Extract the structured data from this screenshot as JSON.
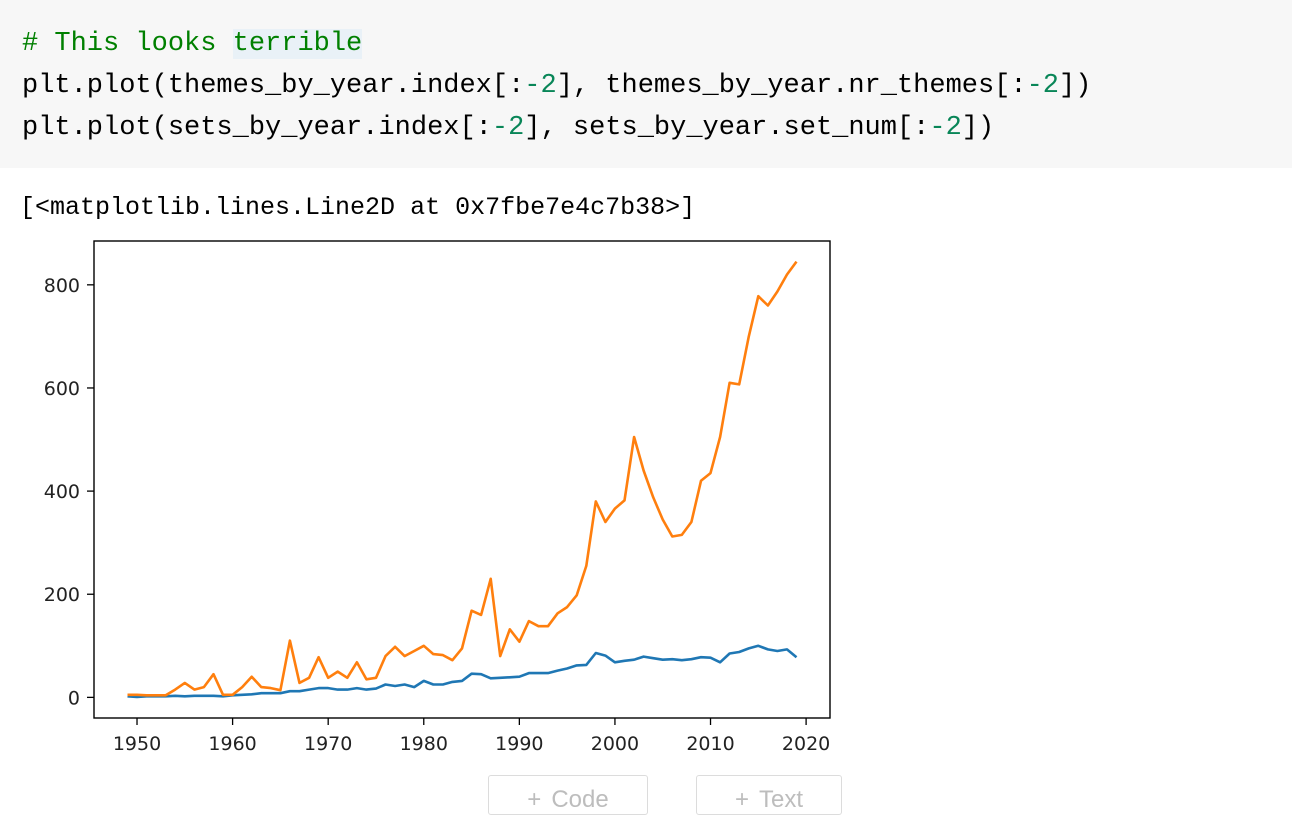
{
  "code": {
    "comment": "# This looks terrible",
    "line2": {
      "pre": "plt.plot(themes_by_year.index[:",
      "n1": "-2",
      "mid": "], themes_by_year.nr_themes[:",
      "n2": "-2",
      "post": "])"
    },
    "line3": {
      "pre": "plt.plot(sets_by_year.index[:",
      "n1": "-2",
      "mid": "], sets_by_year.set_num[:",
      "n2": "-2",
      "post": "])"
    }
  },
  "output": {
    "text": "[<matplotlib.lines.Line2D at 0x7fbe7e4c7b38>]"
  },
  "buttons": {
    "code_label": "Code",
    "text_label": "Text",
    "plus": "+"
  },
  "colors": {
    "series1": "#1f77b4",
    "series2": "#ff7f0e"
  },
  "chart_data": {
    "type": "line",
    "title": "",
    "xlabel": "",
    "ylabel": "",
    "xlim": [
      1945.5,
      2022.5
    ],
    "ylim": [
      -40,
      885
    ],
    "xticks": [
      1950,
      1960,
      1970,
      1980,
      1990,
      2000,
      2010,
      2020
    ],
    "yticks": [
      0,
      200,
      400,
      600,
      800
    ],
    "grid": false,
    "x": [
      1949,
      1950,
      1951,
      1952,
      1953,
      1954,
      1955,
      1956,
      1957,
      1958,
      1959,
      1960,
      1961,
      1962,
      1963,
      1964,
      1965,
      1966,
      1967,
      1968,
      1969,
      1970,
      1971,
      1972,
      1973,
      1974,
      1975,
      1976,
      1977,
      1978,
      1979,
      1980,
      1981,
      1982,
      1983,
      1984,
      1985,
      1986,
      1987,
      1988,
      1989,
      1990,
      1991,
      1992,
      1993,
      1994,
      1995,
      1996,
      1997,
      1998,
      1999,
      2000,
      2001,
      2002,
      2003,
      2004,
      2005,
      2006,
      2007,
      2008,
      2009,
      2010,
      2011,
      2012,
      2013,
      2014,
      2015,
      2016,
      2017,
      2018,
      2019
    ],
    "series": [
      {
        "values": [
          2,
          1,
          2,
          2,
          2,
          3,
          2,
          3,
          3,
          3,
          2,
          4,
          5,
          6,
          8,
          8,
          8,
          12,
          12,
          15,
          18,
          18,
          15,
          15,
          18,
          15,
          17,
          25,
          22,
          25,
          20,
          32,
          25,
          25,
          30,
          32,
          46,
          45,
          37,
          38,
          39,
          40,
          47,
          47,
          47,
          52,
          56,
          62,
          63,
          86,
          81,
          68,
          71,
          73,
          79,
          76,
          73,
          74,
          72,
          74,
          78,
          77,
          68,
          85,
          88,
          95,
          100,
          93,
          90,
          93,
          78
        ]
      },
      {
        "values": [
          5,
          5,
          4,
          4,
          4,
          15,
          28,
          15,
          20,
          45,
          5,
          5,
          20,
          40,
          20,
          18,
          14,
          110,
          28,
          38,
          78,
          38,
          50,
          38,
          68,
          35,
          38,
          80,
          98,
          80,
          90,
          100,
          84,
          82,
          72,
          95,
          168,
          160,
          230,
          80,
          132,
          108,
          148,
          138,
          138,
          163,
          175,
          198,
          255,
          380,
          340,
          366,
          382,
          505,
          440,
          388,
          345,
          312,
          315,
          340,
          420,
          435,
          505,
          610,
          607,
          700,
          778,
          760,
          787,
          820,
          845
        ]
      }
    ]
  }
}
